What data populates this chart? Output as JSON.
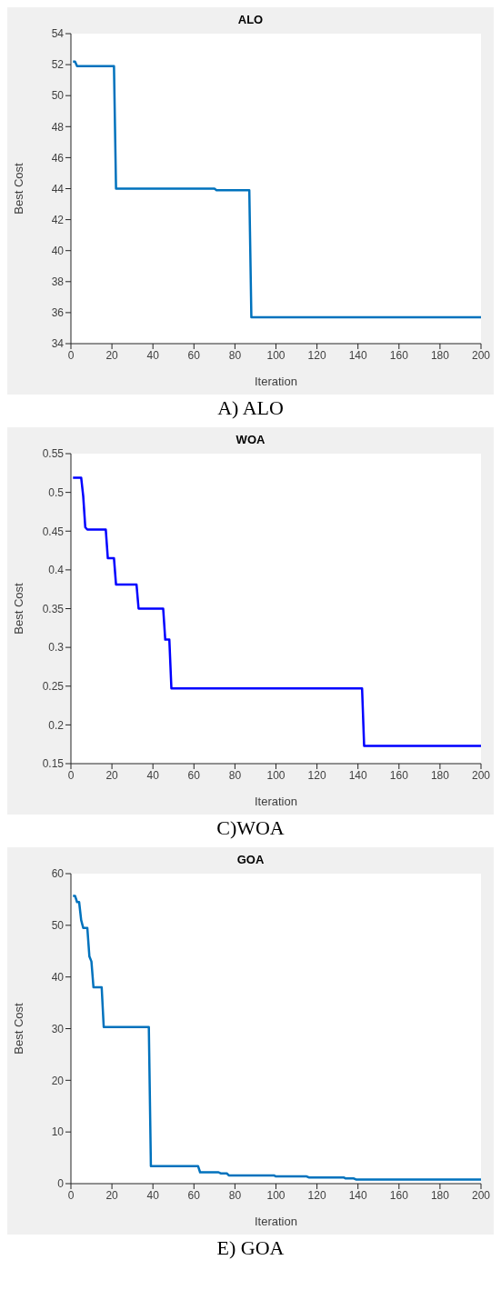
{
  "chart_data": [
    {
      "type": "line",
      "title": "ALO",
      "xlabel": "Iteration",
      "ylabel": "Best Cost",
      "annotations": [
        "A) ALO"
      ],
      "x": [
        1,
        2,
        3,
        21,
        22,
        70,
        71,
        87,
        88,
        200
      ],
      "series": [
        {
          "color": "#0072bd",
          "values": [
            52.2,
            52.2,
            51.9,
            51.9,
            44,
            44,
            43.9,
            43.9,
            35.7,
            35.7
          ]
        }
      ],
      "xlim": [
        0,
        200
      ],
      "xticks": [
        0,
        20,
        40,
        60,
        80,
        100,
        120,
        140,
        160,
        180,
        200
      ],
      "ylim": [
        34,
        54
      ],
      "yticks": [
        34,
        36,
        38,
        40,
        42,
        44,
        46,
        48,
        50,
        52,
        54
      ],
      "grid": false,
      "marker": "none",
      "line_style": "solid"
    },
    {
      "type": "line",
      "title": "WOA",
      "xlabel": "Iteration",
      "ylabel": "Best Cost",
      "annotations": [
        "C)WOA"
      ],
      "x": [
        1,
        5,
        6,
        7,
        8,
        17,
        18,
        21,
        22,
        32,
        33,
        45,
        46,
        48,
        49,
        142,
        143,
        200
      ],
      "series": [
        {
          "color": "#0000ff",
          "values": [
            0.519,
            0.519,
            0.495,
            0.455,
            0.452,
            0.452,
            0.415,
            0.415,
            0.381,
            0.381,
            0.35,
            0.35,
            0.31,
            0.31,
            0.247,
            0.247,
            0.173,
            0.173
          ]
        }
      ],
      "xlim": [
        0,
        200
      ],
      "xticks": [
        0,
        20,
        40,
        60,
        80,
        100,
        120,
        140,
        160,
        180,
        200
      ],
      "ylim": [
        0.15,
        0.55
      ],
      "yticks": [
        0.15,
        0.2,
        0.25,
        0.3,
        0.35,
        0.4,
        0.45,
        0.5,
        0.55
      ],
      "grid": false,
      "marker": "none",
      "line_style": "solid"
    },
    {
      "type": "line",
      "title": "GOA",
      "xlabel": "Iteration",
      "ylabel": "Best Cost",
      "annotations": [
        "E) GOA"
      ],
      "x": [
        1,
        2,
        3,
        4,
        5,
        6,
        8,
        9,
        10,
        11,
        15,
        16,
        38,
        39,
        62,
        63,
        72,
        73,
        76,
        77,
        99,
        100,
        115,
        116,
        133,
        134,
        138,
        139,
        200
      ],
      "series": [
        {
          "color": "#0072bd",
          "values": [
            55.7,
            55.7,
            54.5,
            54.5,
            51,
            49.5,
            49.5,
            44,
            43,
            38,
            38,
            30.3,
            30.3,
            3.4,
            3.4,
            2.2,
            2.2,
            2.0,
            2.0,
            1.6,
            1.6,
            1.4,
            1.4,
            1.2,
            1.2,
            1.0,
            1.0,
            0.8,
            0.8
          ]
        }
      ],
      "xlim": [
        0,
        200
      ],
      "xticks": [
        0,
        20,
        40,
        60,
        80,
        100,
        120,
        140,
        160,
        180,
        200
      ],
      "ylim": [
        0,
        60
      ],
      "yticks": [
        0,
        10,
        20,
        30,
        40,
        50,
        60
      ],
      "grid": false,
      "marker": "none",
      "line_style": "solid"
    }
  ]
}
